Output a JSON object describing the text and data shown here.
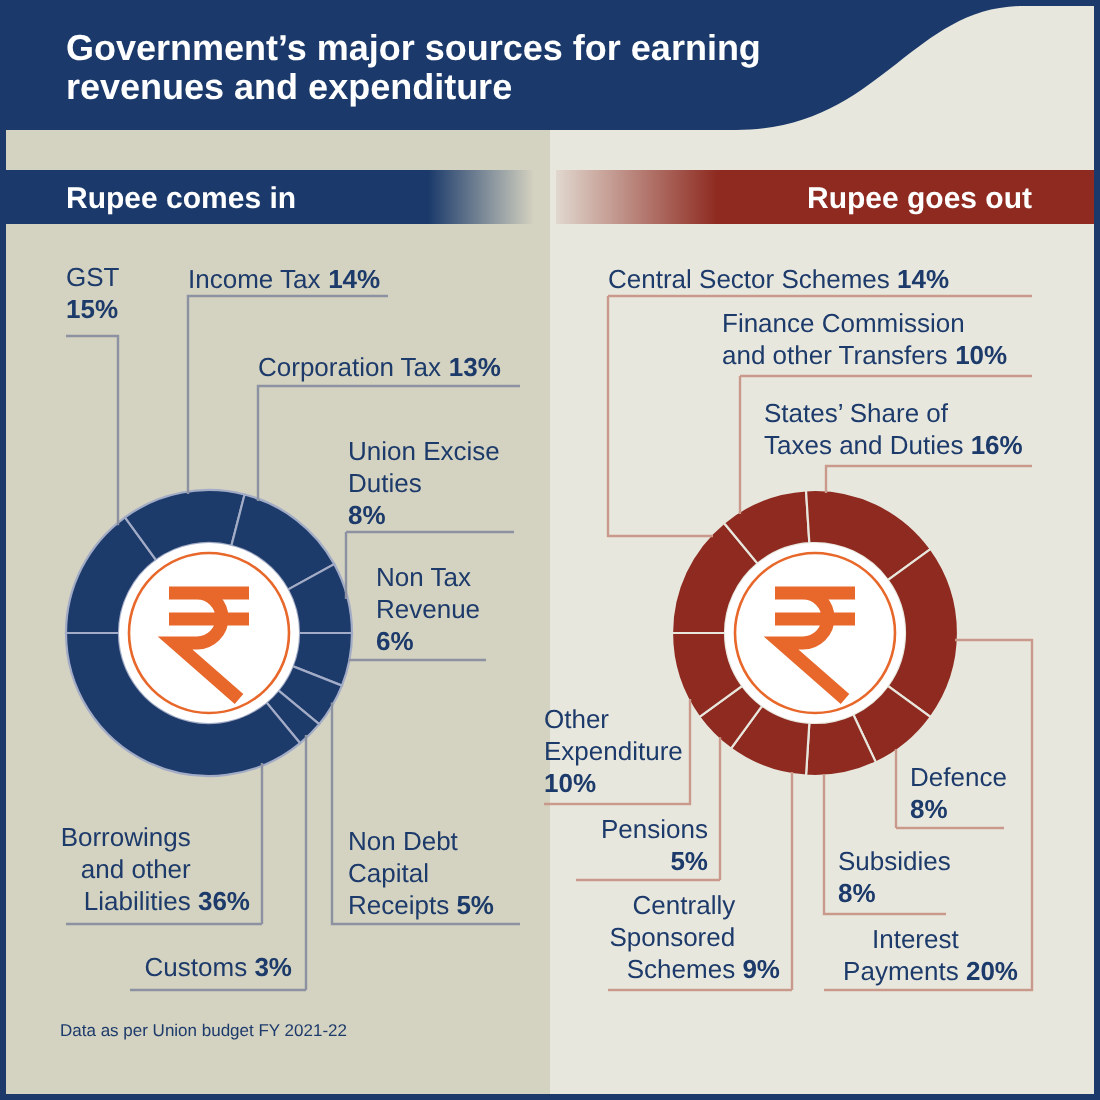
{
  "chart_data": [
    {
      "type": "donut",
      "title": "Government’s major sources for earning revenues and expenditure",
      "subtitle": "Rupee comes in",
      "categories": [
        "GST",
        "Income Tax",
        "Corporation Tax",
        "Union Excise Duties",
        "Non Tax Revenue",
        "Non Debt Capital Receipts",
        "Customs",
        "Borrowings and other Liabilities"
      ],
      "values": [
        15,
        14,
        13,
        8,
        6,
        5,
        3,
        36
      ],
      "value_labels": [
        "15%",
        "14%",
        "13%",
        "8%",
        "6%",
        "5%",
        "3%",
        "36%"
      ],
      "colors": [
        "#1c3a6a",
        "#1c3a6a",
        "#1c3a6a",
        "#1c3a6a",
        "#1c3a6a",
        "#1c3a6a",
        "#1c3a6a",
        "#1c3a6a"
      ],
      "annotations": [
        "Data as per Union budget FY 2021-22"
      ]
    },
    {
      "type": "donut",
      "title": "Rupee goes out",
      "categories": [
        "Central Sector Schemes",
        "Finance Commission and other Transfers",
        "States’ Share of Taxes and Duties",
        "Interest Payments",
        "Defence",
        "Subsidies",
        "Centrally Sponsored Schemes",
        "Pensions",
        "Other Expenditure"
      ],
      "values": [
        14,
        10,
        16,
        20,
        8,
        8,
        9,
        5,
        10
      ],
      "value_labels": [
        "14%",
        "10%",
        "16%",
        "20%",
        "8%",
        "8%",
        "9%",
        "5%",
        "10%"
      ],
      "colors": [
        "#8e2a20",
        "#8e2a20",
        "#8e2a20",
        "#8e2a20",
        "#8e2a20",
        "#8e2a20",
        "#8e2a20",
        "#8e2a20",
        "#8e2a20"
      ]
    }
  ]
}
